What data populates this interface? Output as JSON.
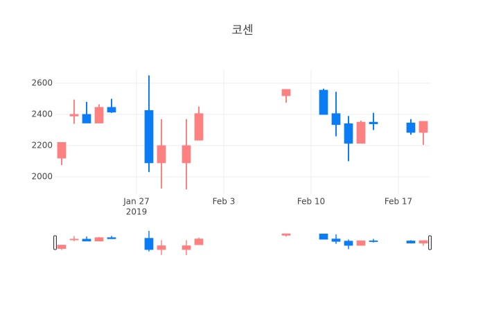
{
  "chart_data": {
    "type": "candlestick",
    "title": "코센",
    "x": [
      "2019-01-21",
      "2019-01-22",
      "2019-01-23",
      "2019-01-24",
      "2019-01-25",
      "2019-01-28",
      "2019-01-29",
      "2019-01-31",
      "2019-02-01",
      "2019-02-08",
      "2019-02-11",
      "2019-02-12",
      "2019-02-13",
      "2019-02-14",
      "2019-02-15",
      "2019-02-18",
      "2019-02-19"
    ],
    "open": [
      2120,
      2390,
      2400,
      2345,
      2445,
      2425,
      2090,
      2090,
      2235,
      2520,
      2555,
      2405,
      2340,
      2215,
      2350,
      2345,
      2285
    ],
    "high": [
      2220,
      2495,
      2480,
      2465,
      2500,
      2650,
      2370,
      2370,
      2450,
      2560,
      2565,
      2545,
      2390,
      2360,
      2410,
      2370,
      2355
    ],
    "low": [
      2075,
      2340,
      2345,
      2345,
      2410,
      2030,
      1925,
      1920,
      2235,
      2475,
      2400,
      2260,
      2100,
      2215,
      2300,
      2270,
      2205
    ],
    "close": [
      2220,
      2400,
      2345,
      2445,
      2415,
      2090,
      2200,
      2200,
      2405,
      2560,
      2400,
      2335,
      2215,
      2350,
      2340,
      2285,
      2355
    ],
    "increasing_color": "#ff8080",
    "decreasing_color": "#0a7cf5",
    "xlim": [
      "2019-01-20T12:00",
      "2019-02-19T12:00"
    ],
    "xticks": [
      {
        "value": "2019-01-27",
        "label": [
          "Jan 27",
          "2019"
        ]
      },
      {
        "value": "2019-02-03",
        "label": [
          "Feb 3"
        ]
      },
      {
        "value": "2019-02-10",
        "label": [
          "Feb 10"
        ]
      },
      {
        "value": "2019-02-17",
        "label": [
          "Feb 17"
        ]
      }
    ],
    "ylim": [
      1889,
      2689
    ],
    "yticks": [
      2000,
      2200,
      2400,
      2600
    ],
    "grid": true,
    "rangeslider": true
  }
}
